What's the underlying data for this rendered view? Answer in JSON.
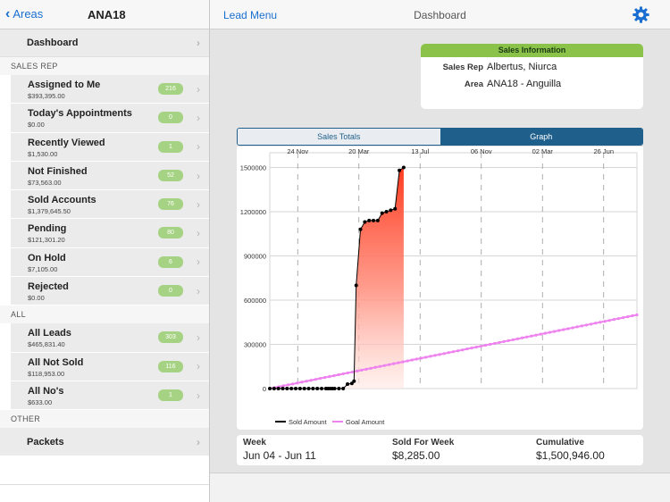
{
  "sidebar": {
    "back_label": "Areas",
    "title": "ANA18",
    "dashboard_label": "Dashboard",
    "sections": {
      "sales_rep": "SALES REP",
      "all": "ALL",
      "other": "OTHER"
    },
    "sales_rep_items": [
      {
        "name": "Assigned to Me",
        "amount": "$393,395.00",
        "count": "216"
      },
      {
        "name": "Today's Appointments",
        "amount": "$0.00",
        "count": "0"
      },
      {
        "name": "Recently Viewed",
        "amount": "$1,530.00",
        "count": "1"
      },
      {
        "name": "Not Finished",
        "amount": "$73,563.00",
        "count": "52"
      },
      {
        "name": "Sold Accounts",
        "amount": "$1,379,645.50",
        "count": "76"
      },
      {
        "name": "Pending",
        "amount": "$121,301.20",
        "count": "80"
      },
      {
        "name": "On Hold",
        "amount": "$7,105.00",
        "count": "6"
      },
      {
        "name": "Rejected",
        "amount": "$0.00",
        "count": "0"
      }
    ],
    "all_items": [
      {
        "name": "All Leads",
        "amount": "$465,831.40",
        "count": "303"
      },
      {
        "name": "All Not Sold",
        "amount": "$118,953.00",
        "count": "116"
      },
      {
        "name": "All No's",
        "amount": "$633.00",
        "count": "1"
      }
    ],
    "other_items": [
      {
        "name": "Packets"
      }
    ]
  },
  "header": {
    "lead_menu_label": "Lead Menu",
    "title": "Dashboard"
  },
  "sales_info": {
    "title": "Sales Information",
    "sales_rep_label": "Sales Rep",
    "sales_rep_value": "Albertus, Niurca",
    "area_label": "Area",
    "area_value": "ANA18 - Anguilla"
  },
  "tabs": [
    {
      "label": "Sales Totals",
      "active": false
    },
    {
      "label": "Graph",
      "active": true
    }
  ],
  "colors": {
    "accent": "#1a6fd1",
    "tab_active": "#1f5f8b",
    "sales_header": "#8bc34a",
    "badge": "#a6d383",
    "sold_fill_top": "#ff3b1f",
    "goal_line": "#ee82ee"
  },
  "chart_data": {
    "type": "line",
    "x_tick_labels": [
      "24 Nov",
      "20 Mar",
      "13 Jul",
      "06 Nov",
      "02 Mar",
      "26 Jun"
    ],
    "y_tick_labels": [
      "0",
      "300000",
      "600000",
      "900000",
      "1200000",
      "1500000"
    ],
    "ylim": [
      0,
      1600000
    ],
    "x_range_days": [
      0,
      850
    ],
    "legend_position": "bottom-left",
    "grid": true,
    "series": [
      {
        "name": "Sold Amount",
        "color": "#000000",
        "fill": "red-gradient",
        "x": [
          0,
          10,
          20,
          30,
          40,
          50,
          60,
          70,
          80,
          90,
          100,
          110,
          120,
          130,
          135,
          140,
          145,
          150,
          160,
          170,
          180,
          190,
          195,
          200,
          210,
          220,
          230,
          240,
          250,
          260,
          270,
          280
        ],
        "y": [
          0,
          0,
          0,
          0,
          0,
          0,
          0,
          0,
          0,
          0,
          0,
          0,
          0,
          0,
          0,
          0,
          0,
          0,
          0,
          0,
          30000,
          35000,
          50000,
          700000,
          1080000,
          1130000,
          1140000,
          1140000,
          1140000,
          1190000,
          1200000,
          1210000
        ]
      },
      {
        "name": "Sold Amount (tail)",
        "color": "#000000",
        "x": [
          290,
          300,
          310
        ],
        "y": [
          1220000,
          1480000,
          1500000
        ]
      },
      {
        "name": "Goal Amount",
        "color": "#ee82ee",
        "x": [
          0,
          850
        ],
        "y": [
          0,
          500000
        ]
      }
    ],
    "legend": [
      "Sold Amount",
      "Goal Amount"
    ]
  },
  "footer": {
    "week_label": "Week",
    "week_value": "Jun 04 - Jun 11",
    "sold_label": "Sold For Week",
    "sold_value": "$8,285.00",
    "cumulative_label": "Cumulative",
    "cumulative_value": "$1,500,946.00"
  }
}
